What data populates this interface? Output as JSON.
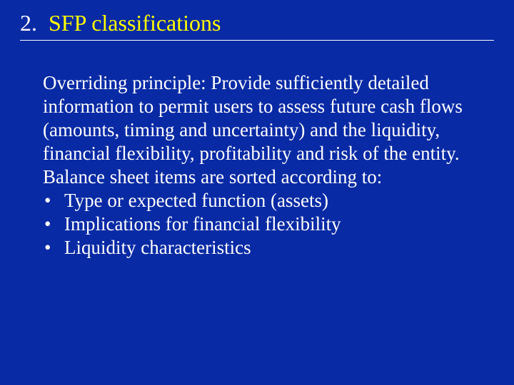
{
  "background_color": "#082aa5",
  "title": {
    "number": "2.",
    "text": "SFP classifications",
    "number_color": "#ffffff",
    "text_color": "#ffff00",
    "font_size_pt": 32,
    "underline_color": "#ffffff"
  },
  "body": {
    "text_color": "#ffffff",
    "font_size_pt": 27,
    "paragraph": "Overriding principle:  Provide sufficiently detailed information to permit users to assess future cash flows (amounts, timing and uncertainty) and the liquidity, financial flexibility, profitability and risk of the entity.  Balance sheet items are sorted according to:",
    "bullets": [
      "Type or expected function (assets)",
      "Implications for financial flexibility",
      "Liquidity characteristics"
    ],
    "bullet_marker": "•"
  }
}
